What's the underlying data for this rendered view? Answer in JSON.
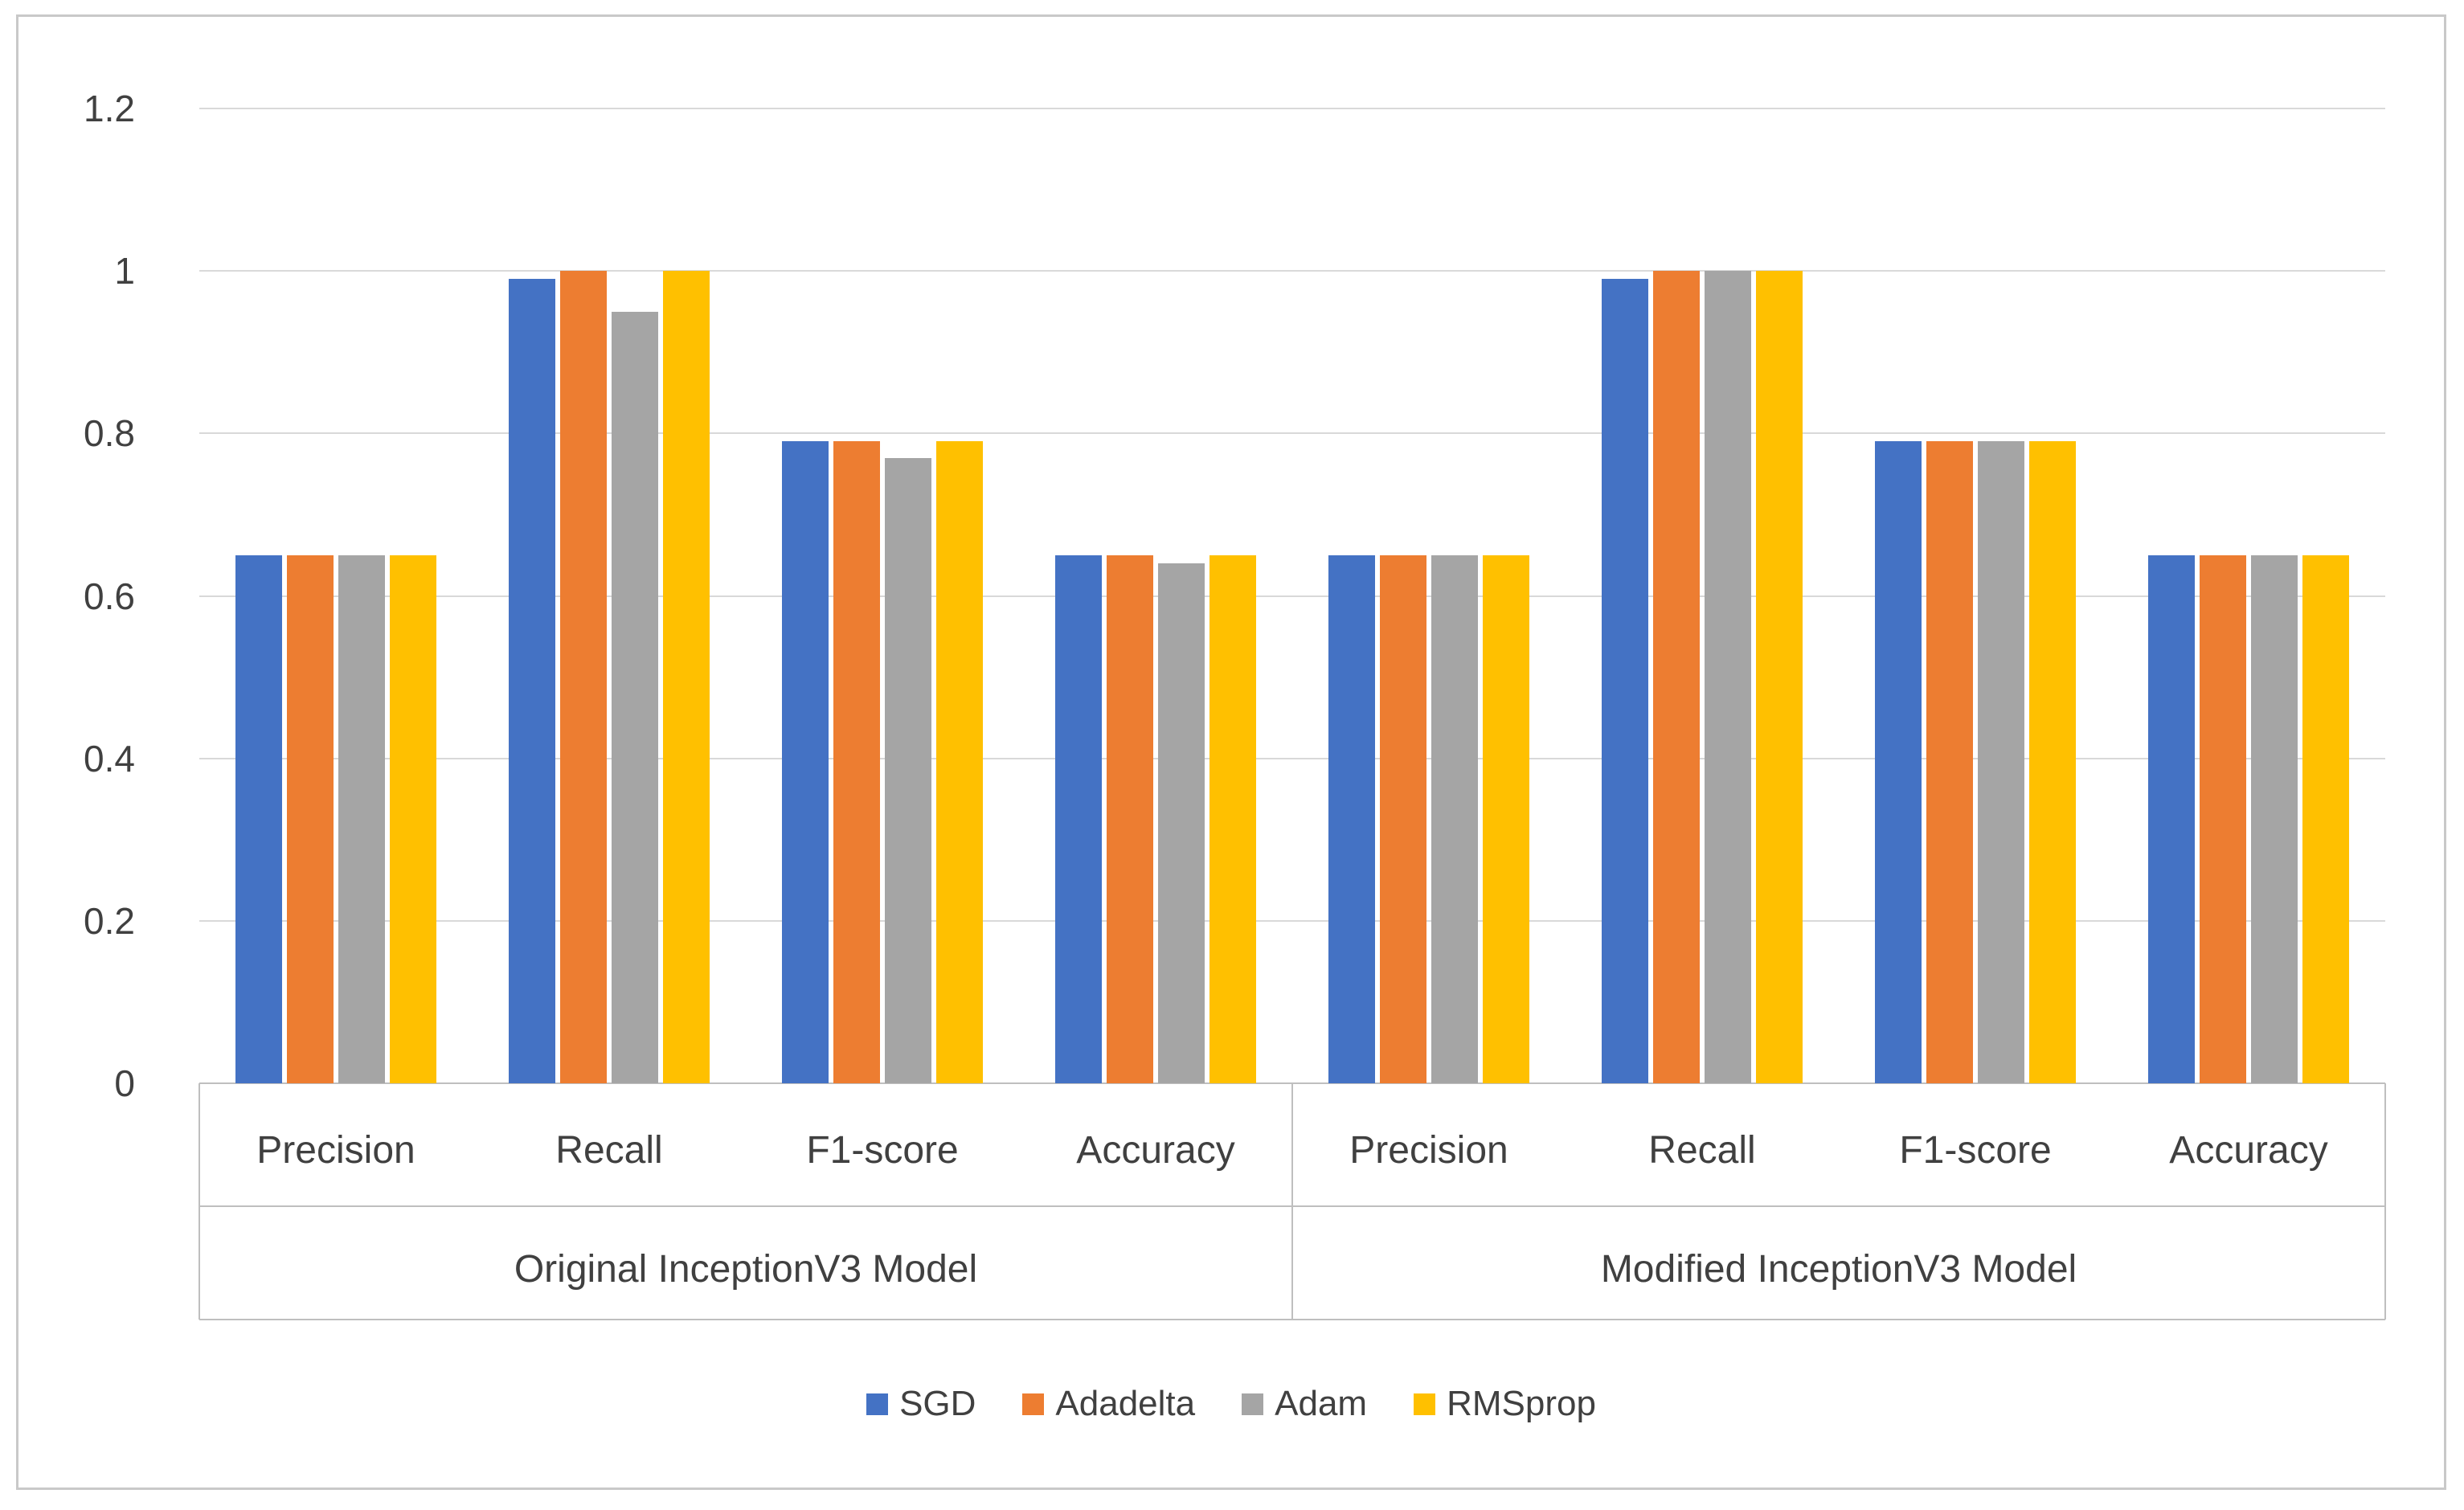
{
  "figure": {
    "background": "#FFFFFF",
    "border_color": "#C9C9C9"
  },
  "chart_data": {
    "type": "bar",
    "title": "",
    "xlabel": "",
    "ylabel": "",
    "ylim": [
      0,
      1.2
    ],
    "ytick_labels": [
      "0",
      "0.2",
      "0.4",
      "0.6",
      "0.8",
      "1",
      "1.2"
    ],
    "grid": true,
    "gridline_color": "#D9D9D9",
    "axis_line_color": "#BFBFBF",
    "label_color": "#404040",
    "legend_position": "bottom",
    "groups": [
      {
        "label": "Original InceptionV3 Model",
        "categories": [
          "Precision",
          "Recall",
          "F1-score",
          "Accuracy"
        ]
      },
      {
        "label": "Modified InceptionV3 Model",
        "categories": [
          "Precision",
          "Recall",
          "F1-score",
          "Accuracy"
        ]
      }
    ],
    "series": [
      {
        "name": "SGD",
        "color": "#4472C4",
        "values": [
          0.65,
          0.99,
          0.79,
          0.65,
          0.65,
          0.99,
          0.79,
          0.65
        ]
      },
      {
        "name": "Adadelta",
        "color": "#ED7D31",
        "values": [
          0.65,
          1.0,
          0.79,
          0.65,
          0.65,
          1.0,
          0.79,
          0.65
        ]
      },
      {
        "name": "Adam",
        "color": "#A5A5A5",
        "values": [
          0.65,
          0.95,
          0.77,
          0.64,
          0.65,
          1.0,
          0.79,
          0.65
        ]
      },
      {
        "name": "RMSprop",
        "color": "#FFC000",
        "values": [
          0.65,
          1.0,
          0.79,
          0.65,
          0.65,
          1.0,
          0.79,
          0.65
        ]
      }
    ]
  }
}
